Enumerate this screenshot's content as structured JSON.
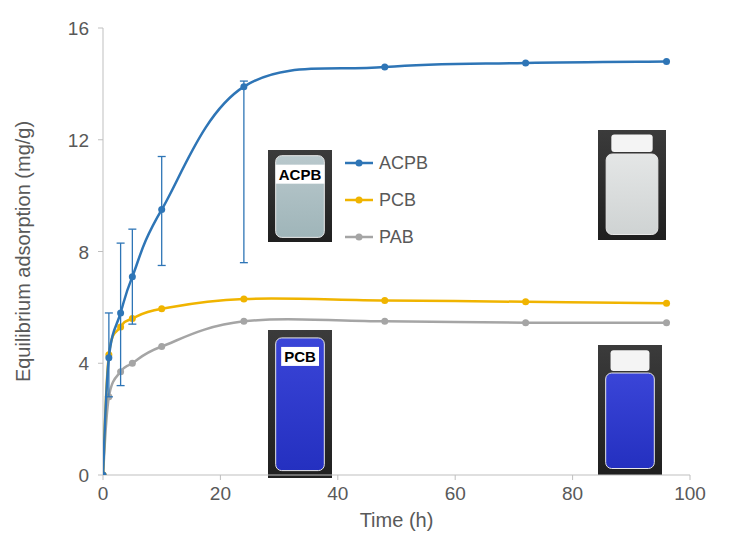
{
  "chart_data": {
    "type": "line",
    "x_label": "Time (h)",
    "y_label": "Equilibrium adsorption (mg/g)",
    "x": [
      0,
      1,
      3,
      5,
      10,
      24,
      48,
      72,
      96
    ],
    "series": [
      {
        "name": "ACPB",
        "color": "#2e75b6",
        "marker": "circle",
        "values": [
          0,
          4.2,
          5.8,
          7.1,
          9.5,
          13.9,
          14.6,
          14.75,
          14.8
        ],
        "error_minus": [
          null,
          1.4,
          2.6,
          1.7,
          2.0,
          6.3,
          null,
          null,
          null
        ],
        "error_plus": [
          null,
          1.6,
          2.5,
          1.7,
          1.9,
          0.2,
          null,
          null,
          null
        ]
      },
      {
        "name": "PCB",
        "color": "#f0b400",
        "marker": "circle",
        "values": [
          0,
          4.3,
          5.3,
          5.6,
          5.95,
          6.3,
          6.25,
          6.2,
          6.15
        ]
      },
      {
        "name": "PAB",
        "color": "#a5a5a5",
        "marker": "circle",
        "values": [
          0,
          2.8,
          3.7,
          4.0,
          4.6,
          5.5,
          5.5,
          5.45,
          5.45
        ]
      }
    ],
    "xlim": [
      0,
      100
    ],
    "xticks": [
      0,
      20,
      40,
      60,
      80,
      100
    ],
    "ylim": [
      0,
      16
    ],
    "yticks": [
      0,
      4,
      8,
      12,
      16
    ],
    "grid": false,
    "legend": "top",
    "annotations": [
      {
        "text": "ACPB"
      },
      {
        "text": "PCB"
      }
    ]
  }
}
